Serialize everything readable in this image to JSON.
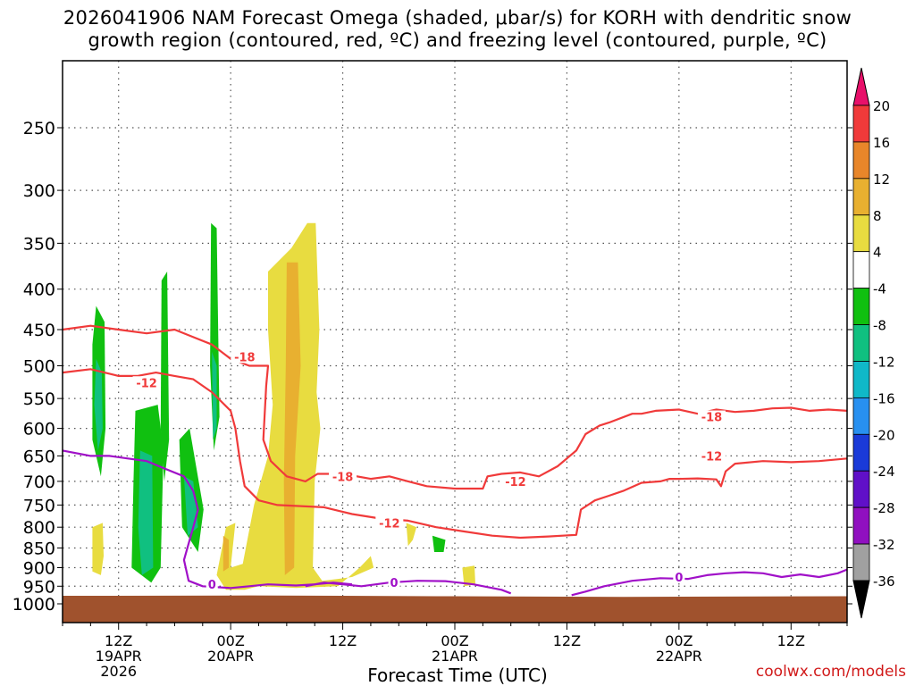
{
  "title": {
    "line1": "2026041906 NAM Forecast Omega (shaded, μbar/s) for KORH with dendritic snow",
    "line2": "growth region (contoured, red, ºC) and freezing level (contoured, purple, ºC)"
  },
  "watermark": "coolwx.com/models",
  "chart_data": {
    "type": "heatmap",
    "title": "2026041906 NAM Forecast Omega (shaded, μbar/s) for KORH with dendritic snow growth region (contoured, red, ºC) and freezing level (contoured, purple, ºC)",
    "xlabel": "Forecast Time (UTC)",
    "ylabel": "",
    "x_ticks": [
      {
        "hour": 6,
        "lines": [
          "12Z",
          "19APR",
          "2026"
        ]
      },
      {
        "hour": 18,
        "lines": [
          "00Z",
          "20APR"
        ]
      },
      {
        "hour": 30,
        "lines": [
          "12Z"
        ]
      },
      {
        "hour": 42,
        "lines": [
          "00Z",
          "21APR"
        ]
      },
      {
        "hour": 54,
        "lines": [
          "12Z"
        ]
      },
      {
        "hour": 66,
        "lines": [
          "00Z",
          "22APR"
        ]
      },
      {
        "hour": 78,
        "lines": [
          "12Z"
        ]
      }
    ],
    "xlim_hours": [
      0,
      84
    ],
    "y_ticks": [
      250,
      300,
      350,
      400,
      450,
      500,
      550,
      600,
      650,
      700,
      750,
      800,
      850,
      900,
      950,
      1000
    ],
    "ylim_hpa": [
      1000,
      200
    ],
    "y_scale": "log-pressure (inverted)",
    "grid": true,
    "colorbar": {
      "labels": [
        "20",
        "16",
        "12",
        "8",
        "4",
        "-4",
        "-8",
        "-12",
        "-16",
        "-20",
        "-24",
        "-28",
        "-32",
        "-36"
      ],
      "colors": [
        "#e8106a",
        "#f03a3a",
        "#e8862a",
        "#e8b030",
        "#e8dc40",
        "#ffffff",
        "#10c010",
        "#10c080",
        "#10b8c8",
        "#2890f0",
        "#1a3ad8",
        "#6010c8",
        "#9010c0",
        "#a0a0a0",
        "#000000"
      ]
    },
    "omega_regions": [
      {
        "level": "up_strong",
        "value": -12,
        "color": "#10c080"
      },
      {
        "level": "up_weak",
        "value": -8,
        "color": "#10c010"
      },
      {
        "level": "down_weak",
        "value": 6,
        "color": "#e8dc40"
      },
      {
        "level": "down_mod",
        "value": 10,
        "color": "#e8b030"
      }
    ],
    "contours": [
      {
        "name": "-18",
        "color": "#f03a3a",
        "label_positions_hours": [
          19.5,
          30.0,
          69.5
        ]
      },
      {
        "name": "-12",
        "color": "#f03a3a",
        "label_positions_hours": [
          9.0,
          35.0,
          48.5,
          69.5
        ]
      },
      {
        "name": "0",
        "color": "#a010c8",
        "label_positions_hours": [
          16.0,
          35.5,
          66.0
        ]
      }
    ],
    "terrain_color": "#a0522d"
  }
}
